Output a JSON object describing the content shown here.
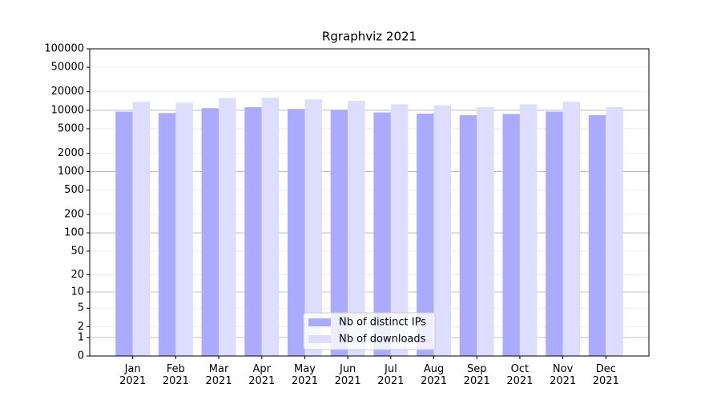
{
  "chart_data": {
    "type": "bar",
    "title": "Rgraphviz 2021",
    "categories": [
      "Jan\n2021",
      "Feb\n2021",
      "Mar\n2021",
      "Apr\n2021",
      "May\n2021",
      "Jun\n2021",
      "Jul\n2021",
      "Aug\n2021",
      "Sep\n2021",
      "Oct\n2021",
      "Nov\n2021",
      "Dec\n2021"
    ],
    "series": [
      {
        "name": "Nb of distinct IPs",
        "color": "#aaaaff",
        "values": [
          9500,
          9000,
          10800,
          11200,
          10500,
          10200,
          9200,
          8800,
          8300,
          8700,
          9500,
          8300
        ]
      },
      {
        "name": "Nb of downloads",
        "color": "#ddddff",
        "values": [
          13800,
          13300,
          15800,
          16000,
          15000,
          14200,
          12500,
          12000,
          11200,
          12500,
          13800,
          11200
        ]
      }
    ],
    "yscale": "log1p",
    "ylim": [
      0,
      100000
    ],
    "yticks": [
      0,
      1,
      2,
      5,
      10,
      20,
      50,
      100,
      200,
      500,
      1000,
      2000,
      5000,
      10000,
      20000,
      50000,
      100000
    ],
    "grid": true,
    "legend": "lower center"
  }
}
